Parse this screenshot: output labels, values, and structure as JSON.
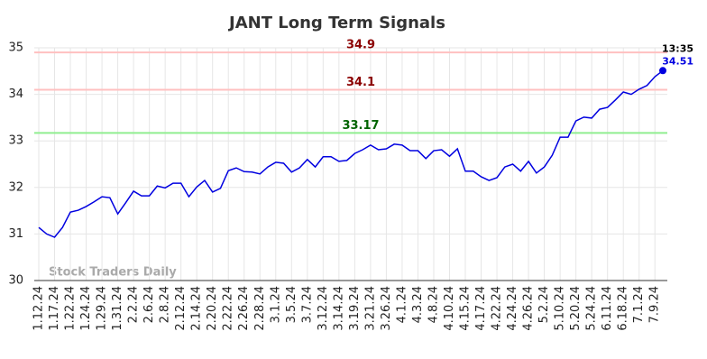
{
  "chart_data": {
    "type": "line",
    "title": "JANT Long Term Signals",
    "watermark": "Stock Traders Daily",
    "categories": [
      "1.12.24",
      null,
      "1.17.24",
      null,
      "1.22.24",
      null,
      "1.24.24",
      null,
      "1.29.24",
      null,
      "1.31.24",
      null,
      "2.2.24",
      null,
      "2.6.24",
      null,
      "2.8.24",
      null,
      "2.12.24",
      null,
      "2.14.24",
      null,
      "2.20.24",
      null,
      "2.22.24",
      null,
      "2.26.24",
      null,
      "2.28.24",
      null,
      "3.1.24",
      null,
      "3.5.24",
      null,
      "3.7.24",
      null,
      "3.12.24",
      null,
      "3.14.24",
      null,
      "3.19.24",
      null,
      "3.21.24",
      null,
      "3.26.24",
      null,
      "4.1.24",
      null,
      "4.3.24",
      null,
      "4.8.24",
      null,
      "4.10.24",
      null,
      "4.15.24",
      null,
      "4.17.24",
      null,
      "4.22.24",
      null,
      "4.24.24",
      null,
      "4.26.24",
      null,
      "5.2.24",
      null,
      "5.10.24",
      null,
      "5.20.24",
      null,
      "5.24.24",
      null,
      "6.11.24",
      null,
      "6.18.24",
      null,
      "7.1.24",
      null,
      "7.9.24",
      null
    ],
    "values": [
      31.14,
      31.0,
      30.93,
      31.14,
      31.47,
      31.51,
      31.59,
      31.69,
      31.8,
      31.78,
      31.43,
      31.67,
      31.92,
      31.82,
      31.82,
      32.03,
      31.99,
      32.09,
      32.09,
      31.8,
      32.01,
      32.15,
      31.9,
      31.98,
      32.36,
      32.42,
      32.34,
      32.33,
      32.29,
      32.44,
      32.54,
      32.52,
      32.33,
      32.42,
      32.6,
      32.44,
      32.66,
      32.66,
      32.56,
      32.58,
      32.73,
      32.81,
      32.91,
      32.81,
      32.83,
      32.93,
      32.91,
      32.79,
      32.79,
      32.62,
      32.79,
      32.81,
      32.67,
      32.83,
      32.35,
      32.35,
      32.23,
      32.15,
      32.21,
      32.44,
      32.5,
      32.35,
      32.56,
      32.31,
      32.44,
      32.69,
      33.08,
      33.08,
      33.43,
      33.51,
      33.49,
      33.68,
      33.72,
      33.88,
      34.05,
      34.0,
      34.11,
      34.19,
      34.38,
      34.51
    ],
    "color": "#0000e0",
    "last_time": "13:35",
    "hlines": [
      {
        "value": 34.9,
        "color": "#ffc0c0",
        "label_color": "#8b0000"
      },
      {
        "value": 34.1,
        "color": "#ffc0c0",
        "label_color": "#8b0000"
      },
      {
        "value": 33.17,
        "color": "#90ee90",
        "label_color": "#006400"
      }
    ],
    "ylim": [
      30,
      35
    ],
    "yticks": [
      30,
      31,
      32,
      33,
      34,
      35
    ],
    "grid": true
  }
}
